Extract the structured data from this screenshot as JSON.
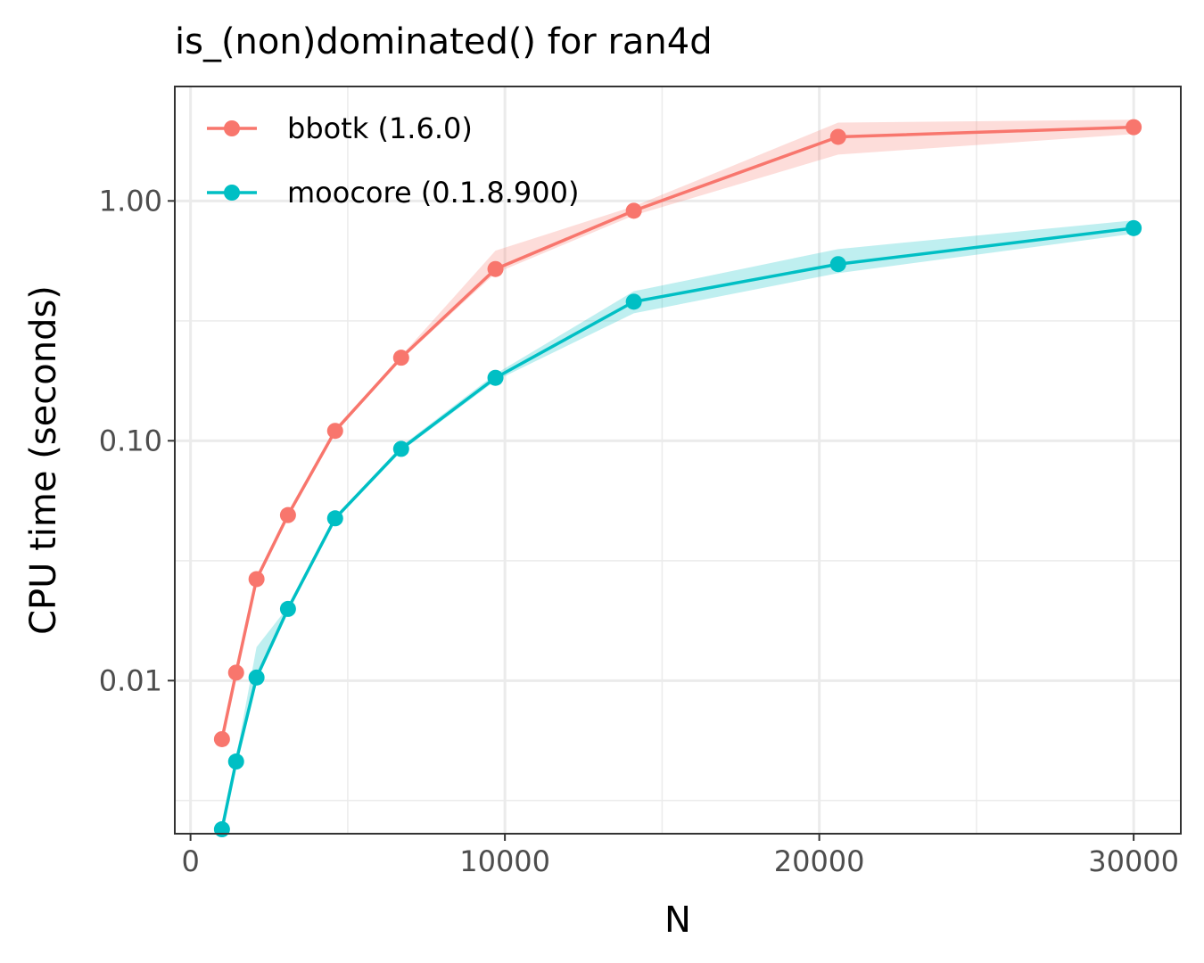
{
  "chart_data": {
    "type": "line",
    "title": "is_(non)dominated() for ran4d",
    "xlabel": "N",
    "ylabel": "CPU time (seconds)",
    "xlim": [
      -500,
      31500
    ],
    "ylim": [
      0.0023,
      3.0
    ],
    "yscale": "log10",
    "x_ticks": [
      0,
      10000,
      20000,
      30000
    ],
    "x_tick_labels": [
      "0",
      "10000",
      "20000",
      "30000"
    ],
    "y_ticks": [
      0.01,
      0.1,
      1.0
    ],
    "y_tick_labels": [
      "0.01",
      "0.10",
      "1.00"
    ],
    "grid": true,
    "legend_position": "top-left",
    "x": [
      1000,
      1450,
      2100,
      3100,
      4600,
      6700,
      9700,
      14100,
      20600,
      30000
    ],
    "series": [
      {
        "name": "bbotk (1.6.0)",
        "color": "#F8766D",
        "values": [
          0.0057,
          0.0108,
          0.0265,
          0.049,
          0.11,
          0.222,
          0.52,
          0.91,
          1.85,
          2.03
        ],
        "lower": [
          0.0056,
          0.0106,
          0.026,
          0.048,
          0.108,
          0.218,
          0.5,
          0.87,
          1.56,
          1.9
        ],
        "upper": [
          0.0059,
          0.0111,
          0.027,
          0.05,
          0.113,
          0.226,
          0.62,
          0.95,
          2.12,
          2.18
        ]
      },
      {
        "name": "moocore (0.1.8.900)",
        "color": "#00BFC4",
        "values": [
          0.0024,
          0.0046,
          0.0103,
          0.0199,
          0.0475,
          0.0925,
          0.183,
          0.38,
          0.545,
          0.77
        ],
        "lower": [
          0.0023,
          0.0045,
          0.0102,
          0.0196,
          0.0465,
          0.0905,
          0.178,
          0.34,
          0.5,
          0.73
        ],
        "upper": [
          0.0025,
          0.0048,
          0.0138,
          0.0203,
          0.0485,
          0.095,
          0.19,
          0.42,
          0.63,
          0.83
        ]
      }
    ]
  }
}
